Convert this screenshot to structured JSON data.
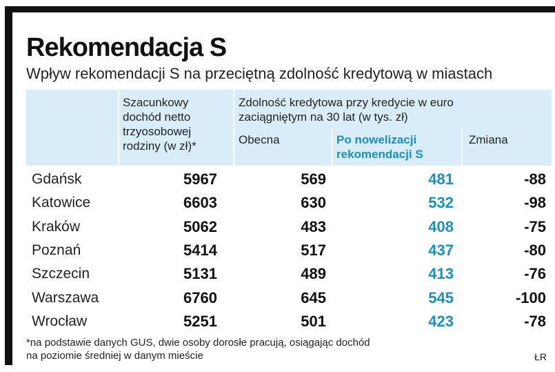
{
  "title": "Rekomendacja S",
  "subtitle": "Wpływ rekomendacji S na przeciętną zdolność kredytową w miastach",
  "headers": {
    "income_line1": "Szacunkowy",
    "income_line2": "dochód netto",
    "income_line3": "trzyosobowej",
    "income_line4": "rodziny (w zł)*",
    "capacity_line1": "Zdolność kredytowa przy kredycie w euro",
    "capacity_line2": "zaciągniętym na 30 lat (w tys. zł)",
    "current": "Obecna",
    "after_line1": "Po nowelizacji",
    "after_line2": "rekomendacji S",
    "change": "Zmiana"
  },
  "rows": [
    {
      "city": "Gdańsk",
      "income": "5967",
      "current": "569",
      "after": "481",
      "change": "-88"
    },
    {
      "city": "Katowice",
      "income": "6603",
      "current": "630",
      "after": "532",
      "change": "-98"
    },
    {
      "city": "Kraków",
      "income": "5062",
      "current": "483",
      "after": "408",
      "change": "-75"
    },
    {
      "city": "Poznań",
      "income": "5414",
      "current": "517",
      "after": "437",
      "change": "-80"
    },
    {
      "city": "Szczecin",
      "income": "5131",
      "current": "489",
      "after": "413",
      "change": "-76"
    },
    {
      "city": "Warszawa",
      "income": "6760",
      "current": "645",
      "after": "545",
      "change": "-100"
    },
    {
      "city": "Wrocław",
      "income": "5251",
      "current": "501",
      "after": "423",
      "change": "-78"
    }
  ],
  "footnote_line1": "*na podstawie danych GUS, dwie osoby dorosłe pracują, osiągając dochód",
  "footnote_line2": "na poziomie średniej w danym mieście",
  "source": "ŁR",
  "colors": {
    "accent": "#1790c4",
    "header_bg": "#d8edf7",
    "frame": "#111111"
  }
}
